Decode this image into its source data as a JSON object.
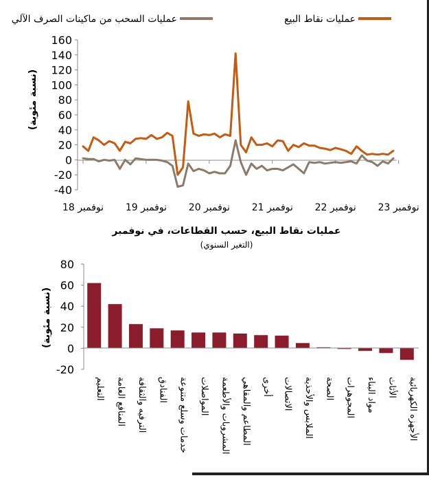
{
  "chart_data": [
    {
      "type": "line",
      "legend": {
        "placement": "top",
        "items": [
          "عمليات نقاط البيع",
          "عمليات السحب من ماكينات الصرف الآلي"
        ]
      },
      "ylabel": "(نسبة مئوية)",
      "ylim": [
        -40,
        160
      ],
      "yticks": [
        -40,
        -20,
        0,
        20,
        40,
        60,
        80,
        100,
        120,
        140,
        160
      ],
      "x_tick_labels": [
        "نوفمبر 18",
        "نوفمبر 19",
        "نوفمبر 20",
        "نوفمبر 21",
        "نوفمبر 22",
        "نوفمبر 23"
      ],
      "x_tick_index": [
        0,
        12,
        24,
        36,
        48,
        60
      ],
      "grid": false,
      "colors": {
        "pos": "#c55a11",
        "atm": "#8c7b6b"
      },
      "series": [
        {
          "name": "عمليات نقاط البيع",
          "values": [
            18,
            12,
            30,
            26,
            20,
            25,
            22,
            12,
            24,
            22,
            28,
            29,
            28,
            33,
            28,
            30,
            36,
            32,
            -20,
            -10,
            78,
            35,
            32,
            34,
            33,
            35,
            30,
            34,
            32,
            142,
            20,
            10,
            30,
            20,
            20,
            22,
            18,
            26,
            25,
            12,
            20,
            17,
            22,
            19,
            19,
            16,
            15,
            13,
            16,
            14,
            12,
            8,
            18,
            12,
            7,
            8,
            7,
            8,
            7,
            12
          ]
        },
        {
          "name": "عمليات السحب من ماكينات الصرف الآلي",
          "values": [
            2,
            1,
            1,
            -2,
            0,
            -1,
            0,
            -12,
            0,
            -6,
            2,
            1,
            0,
            0,
            0,
            -1,
            -3,
            -8,
            -36,
            -34,
            -5,
            -15,
            -12,
            -14,
            -18,
            -16,
            -18,
            -18,
            -8,
            26,
            -3,
            -20,
            -5,
            -12,
            -8,
            -14,
            -12,
            -12,
            -14,
            -10,
            -6,
            -12,
            -18,
            -3,
            -4,
            -3,
            -5,
            -4,
            -3,
            -4,
            -3,
            -2,
            -5,
            6,
            -1,
            -3,
            -8,
            -2,
            -5,
            2
          ]
        }
      ]
    },
    {
      "type": "bar",
      "title": "عمليات نقاط البيع، حسب القطاعات، في نوفمبر",
      "subtitle": "(التغير السنوي)",
      "ylabel": "(نسبة مئوية)",
      "ylim": [
        -20,
        80
      ],
      "yticks": [
        -20,
        0,
        20,
        40,
        60,
        80
      ],
      "grid": false,
      "color": "#8b1c2c",
      "categories": [
        "التعليم",
        "المنافع العامة",
        "الترفيه والثقافة",
        "الفنادق",
        "خدمات وسلع متنوعة",
        "المواصلات",
        "المشروبات والأطعمة",
        "المطاعم والمقاهي",
        "أخرى",
        "الاتصالات",
        "الملابس والأحذية",
        "الصحة",
        "المجوهرات",
        "مواد البناء",
        "الأثاث",
        "الأجهزه الكهربائية"
      ],
      "values": [
        62,
        42,
        23,
        19,
        17,
        15,
        15,
        14,
        12.5,
        12,
        5,
        1,
        -0.5,
        -2.5,
        -4.5,
        -11
      ]
    }
  ]
}
